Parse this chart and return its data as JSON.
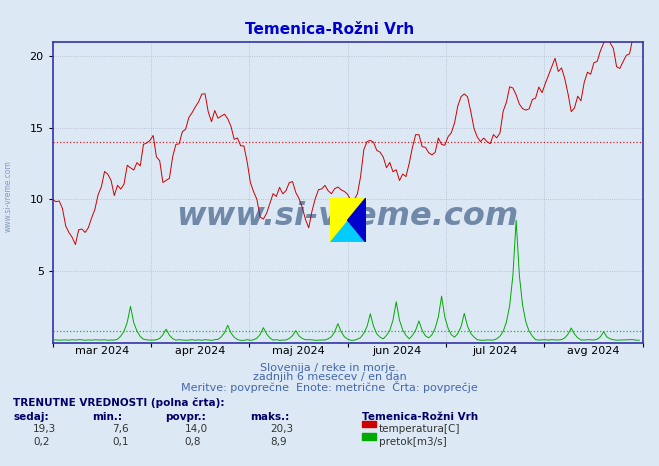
{
  "title": "Temenica-Rožni Vrh",
  "title_color": "#0000cc",
  "bg_color": "#dce9f5",
  "plot_bg_color": "#dce9f5",
  "grid_color": "#b0b8cc",
  "grid_style": ":",
  "axis_color": "#3333aa",
  "xlabel_ticks": [
    "mar 2024",
    "apr 2024",
    "maj 2024",
    "jun 2024",
    "jul 2024",
    "avg 2024"
  ],
  "ylim": [
    0,
    21
  ],
  "yticks": [
    5,
    10,
    15,
    20
  ],
  "xlim": [
    0,
    182
  ],
  "temp_hline": 14.0,
  "flow_hline": 0.8,
  "watermark": "www.si-vreme.com",
  "watermark_color": "#1a3a6a",
  "subtitle1": "Slovenija / reke in morje.",
  "subtitle2": "zadnjih 6 mesecev / en dan",
  "subtitle3": "Meritve: povprečne  Enote: metrične  Črta: povprečje",
  "legend_title": "Temenica-Rožni Vrh",
  "temp_color": "#cc0000",
  "flow_color": "#00aa00",
  "temp_label": "temperatura[C]",
  "flow_label": "pretok[m3/s]",
  "table_label": "TRENUTNE VREDNOSTI (polna črta):",
  "col_headers": [
    "sedaj:",
    "min.:",
    "povpr.:",
    "maks.:"
  ],
  "temp_row": [
    "19,3",
    "7,6",
    "14,0",
    "20,3"
  ],
  "flow_row": [
    "0,2",
    "0,1",
    "0,8",
    "8,9"
  ],
  "side_watermark": "www.si-vreme.com",
  "subtitle_color": "#4466aa",
  "table_color": "#000066",
  "value_color": "#333333"
}
